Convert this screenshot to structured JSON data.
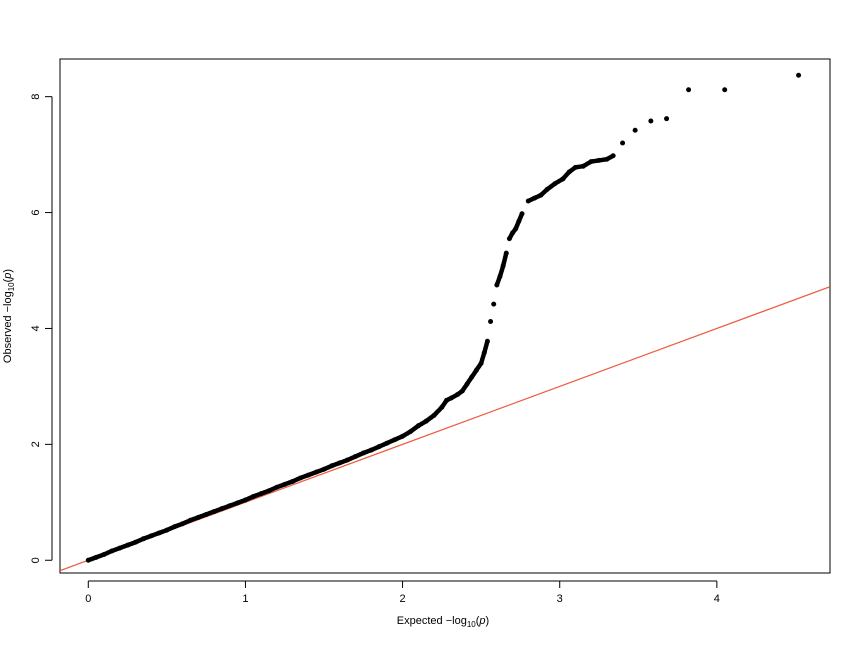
{
  "chart_data": {
    "type": "scatter",
    "title": "",
    "xlabel": {
      "prefix": "Expected  −log",
      "sub": "10",
      "open": "(",
      "var": "p",
      "close": ")"
    },
    "ylabel": {
      "prefix": "Observed  −log",
      "sub": "10",
      "open": "(",
      "var": "p",
      "close": ")"
    },
    "xlim": [
      -0.18,
      4.72
    ],
    "ylim": [
      -0.22,
      8.65
    ],
    "xticks": [
      0,
      1,
      2,
      3,
      4
    ],
    "yticks": [
      0,
      2,
      4,
      6,
      8
    ],
    "grid": false,
    "legend": "none",
    "point_color": "#000000",
    "reference_line": {
      "intercept": 0,
      "slope": 1,
      "color": "#ef5a3c"
    },
    "points": [
      [
        0.0,
        0.0
      ],
      [
        0.05,
        0.05
      ],
      [
        0.1,
        0.1
      ],
      [
        0.15,
        0.16
      ],
      [
        0.2,
        0.21
      ],
      [
        0.25,
        0.26
      ],
      [
        0.3,
        0.31
      ],
      [
        0.35,
        0.37
      ],
      [
        0.4,
        0.42
      ],
      [
        0.45,
        0.47
      ],
      [
        0.5,
        0.52
      ],
      [
        0.55,
        0.58
      ],
      [
        0.6,
        0.63
      ],
      [
        0.65,
        0.69
      ],
      [
        0.7,
        0.74
      ],
      [
        0.75,
        0.79
      ],
      [
        0.8,
        0.84
      ],
      [
        0.85,
        0.89
      ],
      [
        0.9,
        0.94
      ],
      [
        0.95,
        0.99
      ],
      [
        1.0,
        1.04
      ],
      [
        1.05,
        1.1
      ],
      [
        1.1,
        1.15
      ],
      [
        1.15,
        1.2
      ],
      [
        1.2,
        1.26
      ],
      [
        1.25,
        1.31
      ],
      [
        1.3,
        1.36
      ],
      [
        1.35,
        1.42
      ],
      [
        1.4,
        1.47
      ],
      [
        1.45,
        1.52
      ],
      [
        1.5,
        1.57
      ],
      [
        1.55,
        1.63
      ],
      [
        1.6,
        1.68
      ],
      [
        1.65,
        1.73
      ],
      [
        1.7,
        1.79
      ],
      [
        1.75,
        1.85
      ],
      [
        1.8,
        1.9
      ],
      [
        1.85,
        1.96
      ],
      [
        1.9,
        2.02
      ],
      [
        1.95,
        2.08
      ],
      [
        2.0,
        2.14
      ],
      [
        2.05,
        2.22
      ],
      [
        2.1,
        2.32
      ],
      [
        2.15,
        2.4
      ],
      [
        2.2,
        2.5
      ],
      [
        2.25,
        2.64
      ],
      [
        2.28,
        2.76
      ],
      [
        2.31,
        2.8
      ],
      [
        2.35,
        2.86
      ],
      [
        2.38,
        2.92
      ],
      [
        2.41,
        3.04
      ],
      [
        2.44,
        3.16
      ],
      [
        2.47,
        3.28
      ],
      [
        2.5,
        3.4
      ],
      [
        2.52,
        3.58
      ],
      [
        2.54,
        3.78
      ],
      [
        2.56,
        4.12
      ],
      [
        2.58,
        4.42
      ],
      [
        2.6,
        4.75
      ],
      [
        2.62,
        4.9
      ],
      [
        2.64,
        5.08
      ],
      [
        2.66,
        5.3
      ],
      [
        2.68,
        5.55
      ],
      [
        2.7,
        5.65
      ],
      [
        2.72,
        5.72
      ],
      [
        2.74,
        5.85
      ],
      [
        2.76,
        5.98
      ],
      [
        2.8,
        6.2
      ],
      [
        2.84,
        6.25
      ],
      [
        2.88,
        6.3
      ],
      [
        2.92,
        6.4
      ],
      [
        2.97,
        6.5
      ],
      [
        3.02,
        6.58
      ],
      [
        3.06,
        6.7
      ],
      [
        3.1,
        6.78
      ],
      [
        3.15,
        6.8
      ],
      [
        3.2,
        6.88
      ],
      [
        3.25,
        6.9
      ],
      [
        3.3,
        6.92
      ],
      [
        3.34,
        6.98
      ],
      [
        3.4,
        7.2
      ],
      [
        3.48,
        7.42
      ],
      [
        3.58,
        7.58
      ],
      [
        3.68,
        7.62
      ],
      [
        3.82,
        8.12
      ],
      [
        4.05,
        8.12
      ],
      [
        4.52,
        8.37
      ]
    ]
  }
}
